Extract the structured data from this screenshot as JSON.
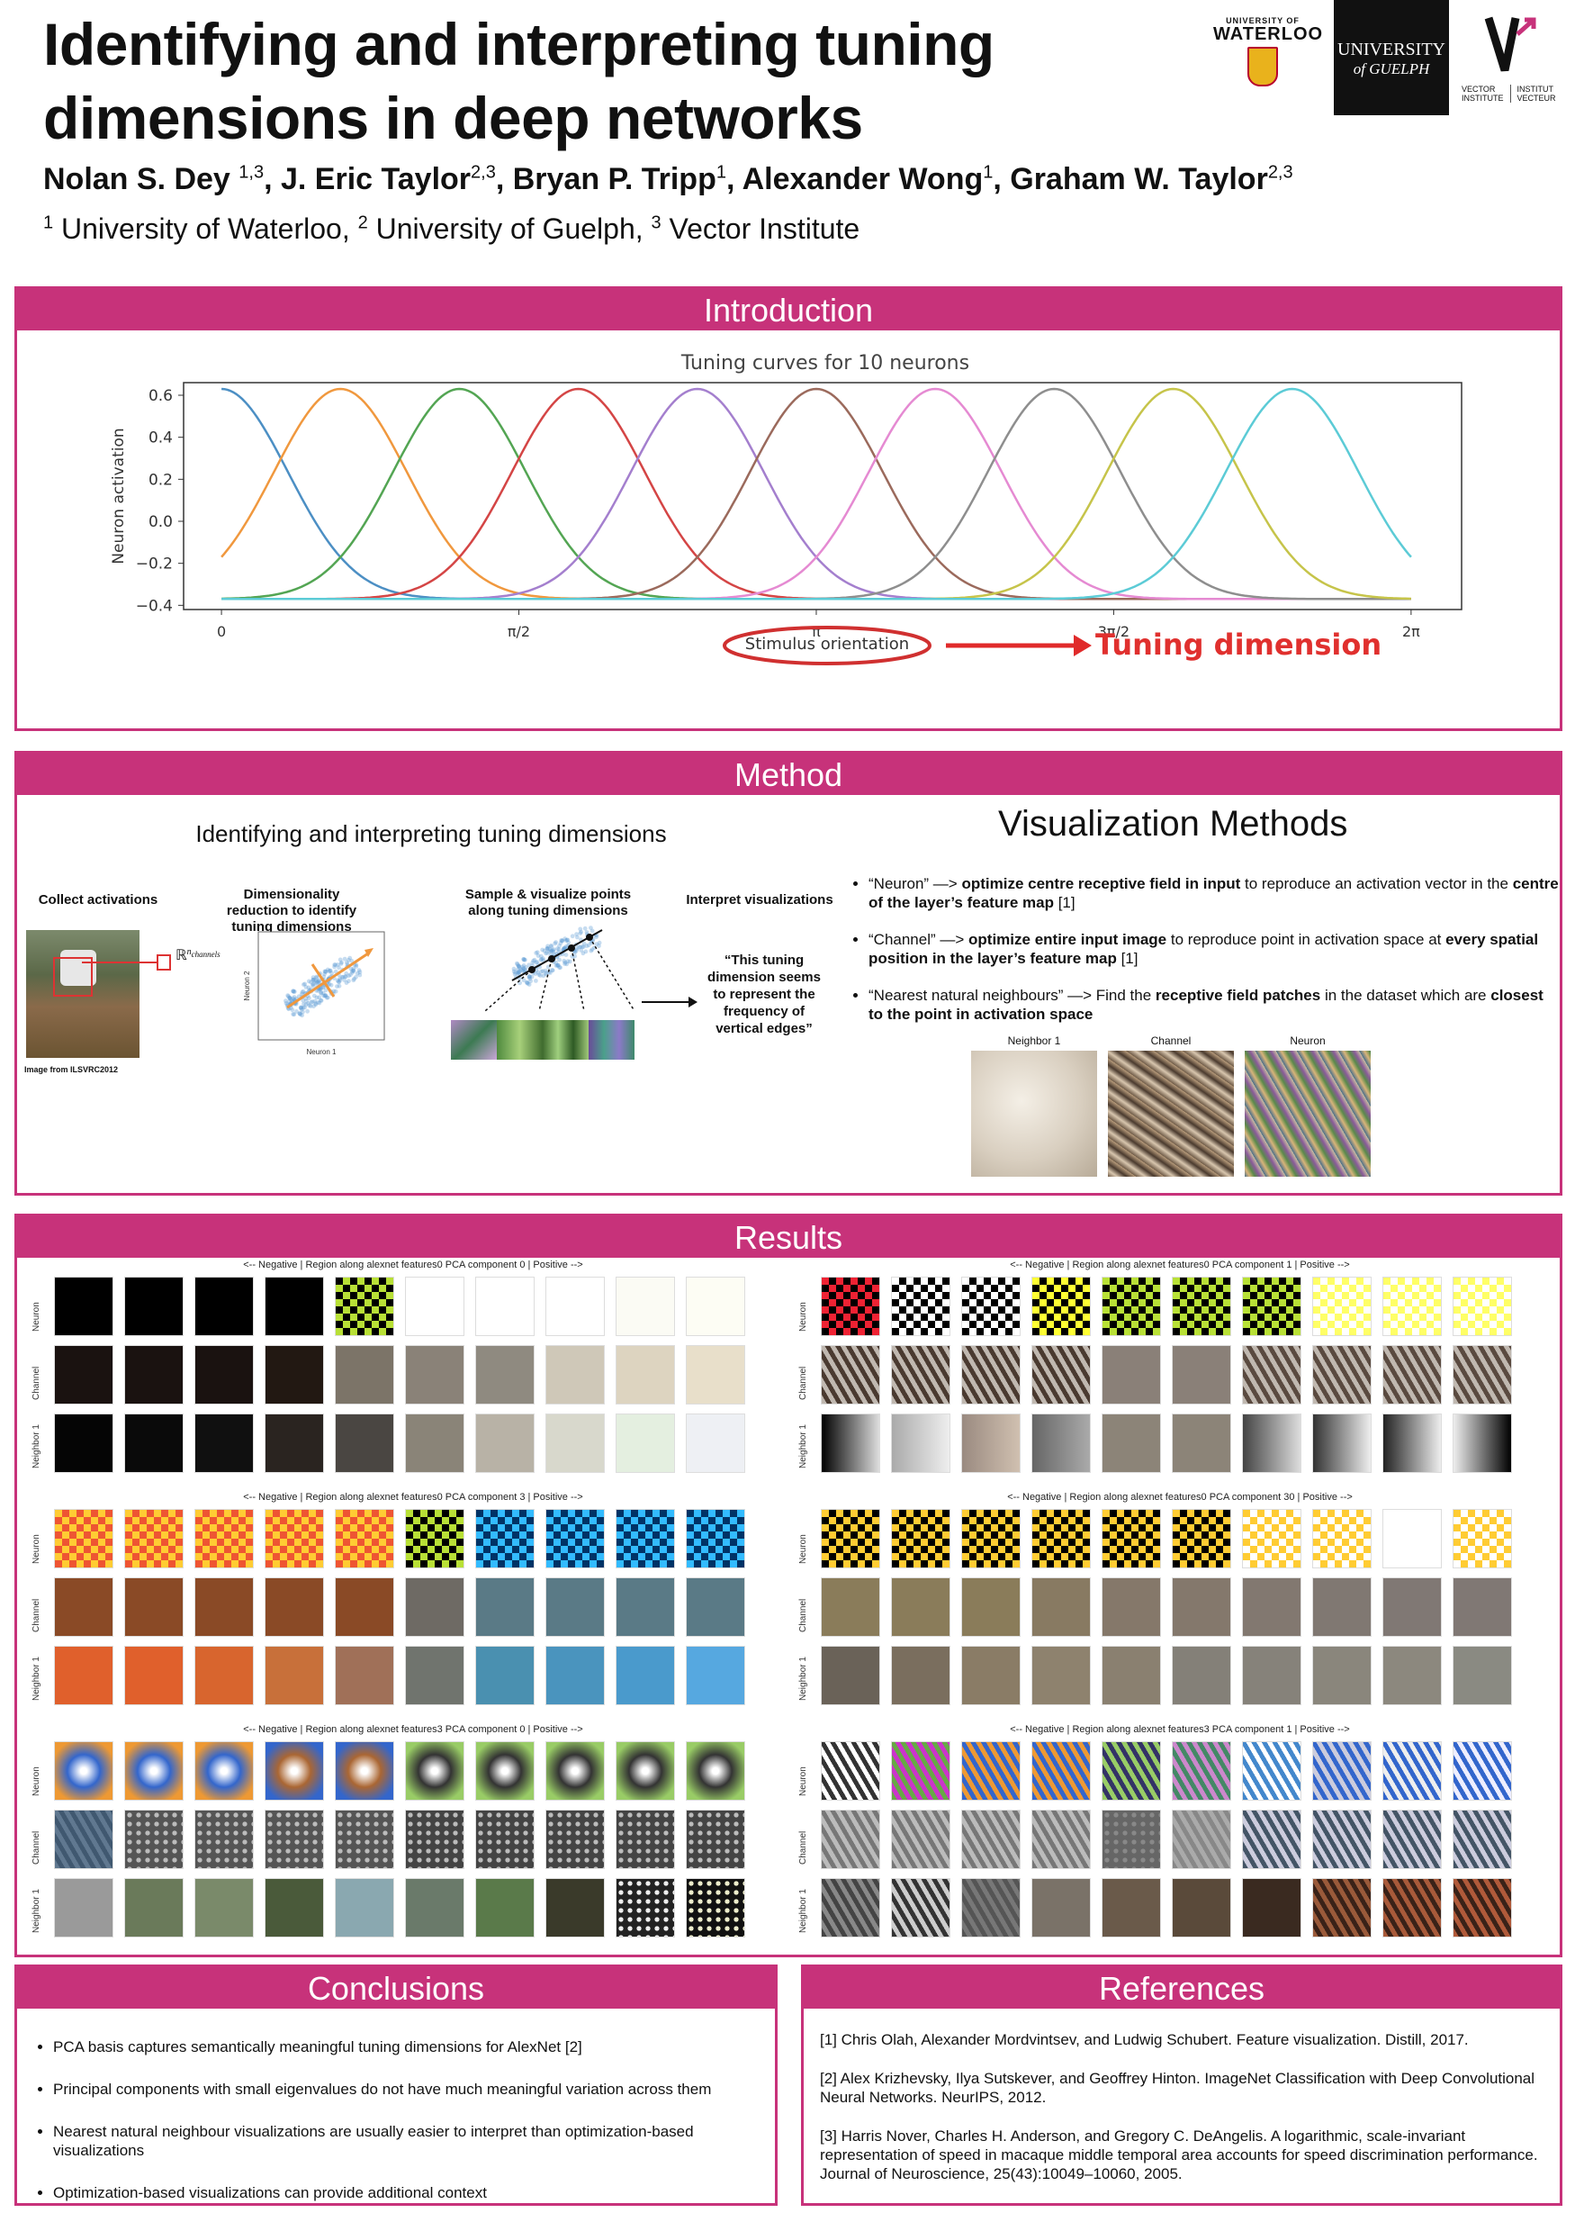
{
  "header": {
    "title_line1": "Identifying and interpreting tuning",
    "title_line2": "dimensions in deep networks",
    "authors": [
      {
        "name": "Nolan S. Dey ",
        "sup": "1,3"
      },
      {
        "name": ", J. Eric Taylor",
        "sup": "2,3"
      },
      {
        "name": ", Bryan P. Tripp",
        "sup": "1"
      },
      {
        "name": ", Alexander Wong",
        "sup": "1"
      },
      {
        "name": ", Graham W. Taylor",
        "sup": "2,3"
      }
    ],
    "affiliations": [
      {
        "sup": "1",
        "name": " University of Waterloo, "
      },
      {
        "sup": "2",
        "name": " University of Guelph, "
      },
      {
        "sup": "3",
        "name": " Vector Institute"
      }
    ],
    "logos": {
      "waterloo_small": "UNIVERSITY OF",
      "waterloo_big": "WATERLOO",
      "guelph_line1": "UNIVERSITY",
      "guelph_line2": "of GUELPH",
      "vector_l": "VECTOR INSTITUTE",
      "vector_r": "INSTITUT VECTEUR"
    }
  },
  "introduction": {
    "heading": "Introduction",
    "chart_title": "Tuning curves for 10 neurons",
    "callout_left": "Stimulus orientation",
    "callout_right": "Tuning dimension"
  },
  "chart_data": {
    "type": "line",
    "title": "Tuning curves for 10 neurons",
    "xlabel": "",
    "ylabel": "Neuron activation",
    "xticks": [
      "0",
      "π/2",
      "π",
      "3π/2",
      "2π"
    ],
    "yticks": [
      "0.6",
      "0.4",
      "0.2",
      "0.0",
      "−0.2",
      "−0.4"
    ],
    "ylim": [
      -0.42,
      0.66
    ],
    "xlim": [
      -0.2,
      6.55
    ],
    "baseline": -0.37,
    "peak": 0.63,
    "width": 0.35,
    "centers": [
      0,
      0.628,
      1.257,
      1.885,
      2.513,
      3.142,
      3.77,
      4.398,
      5.027,
      5.655
    ],
    "colors": [
      "#4c8fc4",
      "#f0983e",
      "#53a553",
      "#d44545",
      "#a47fce",
      "#9b6a5c",
      "#e58ad2",
      "#8e8e8e",
      "#c6c44a",
      "#5ccbd6"
    ]
  },
  "method": {
    "heading": "Method",
    "left_title": "Identifying and interpreting tuning dimensions",
    "step1": "Collect activations",
    "step2": "Dimensionality reduction to identify tuning dimensions",
    "step3": "Sample & visualize points along tuning dimensions",
    "step4": "Interpret visualizations",
    "quote": "“This tuning dimension seems to represent the frequency of vertical edges”",
    "image_caption": "Image from ILSVRC2012",
    "rn_label": "ℝ",
    "rn_sup": "n",
    "rn_sub": "channels",
    "axis_neuron1": "Neuron 1",
    "axis_neuron2": "Neuron 2",
    "right_title": "Visualization Methods",
    "bullets": [
      {
        "a": "“Neuron” —> ",
        "b": "optimize centre receptive field in input",
        "c": " to reproduce an activation vector in the ",
        "d": "centre of the layer’s feature map",
        "e": " [1]"
      },
      {
        "a": "“Channel” —> ",
        "b": "optimize entire input image",
        "c": " to reproduce point in activation space at ",
        "d": "every spatial position in the layer’s feature map",
        "e": " [1]"
      },
      {
        "a": "“Nearest natural neighbours” —> Find the ",
        "b": "receptive field patches",
        "c": " in the dataset which are ",
        "d": "closest to the point in activation space",
        "e": ""
      }
    ],
    "vis_labels": [
      "Neighbor 1",
      "Channel",
      "Neuron"
    ]
  },
  "results": {
    "heading": "Results",
    "row_labels": [
      "Neuron",
      "Channel",
      "Neighbor 1"
    ],
    "grid_titles": [
      "<-- Negative | Region along alexnet features0 PCA component 0 | Positive -->",
      "<-- Negative | Region along alexnet features0 PCA component 1 | Positive -->",
      "<-- Negative | Region along alexnet features0 PCA component 3 | Positive -->",
      "<-- Negative | Region along alexnet features0 PCA component 30 | Positive -->",
      "<-- Negative | Region along alexnet features3 PCA component 0 | Positive -->",
      "<-- Negative | Region along alexnet features3 PCA component 1 | Positive -->"
    ]
  },
  "conclusions": {
    "heading": "Conclusions",
    "items": [
      "PCA basis captures semantically meaningful tuning dimensions for AlexNet [2]",
      "Principal components with small eigenvalues do not have much meaningful variation across them",
      "Nearest natural neighbour visualizations are usually easier to interpret than optimization-based visualizations",
      "Optimization-based visualizations can provide additional context"
    ]
  },
  "references": {
    "heading": "References",
    "items": [
      "[1]  Chris Olah, Alexander Mordvintsev, and Ludwig Schubert. Feature visualization. Distill, 2017.",
      "[2] Alex Krizhevsky, Ilya Sutskever, and Geoffrey Hinton. ImageNet Classification with Deep Convolutional Neural Networks. NeurIPS, 2012.",
      "[3] Harris Nover, Charles H. Anderson, and Gregory C. DeAngelis. A logarithmic, scale-invariant representation of speed in macaque middle temporal area accounts for speed discrimination performance. Journal of Neuroscience, 25(43):10049–10060, 2005."
    ]
  }
}
